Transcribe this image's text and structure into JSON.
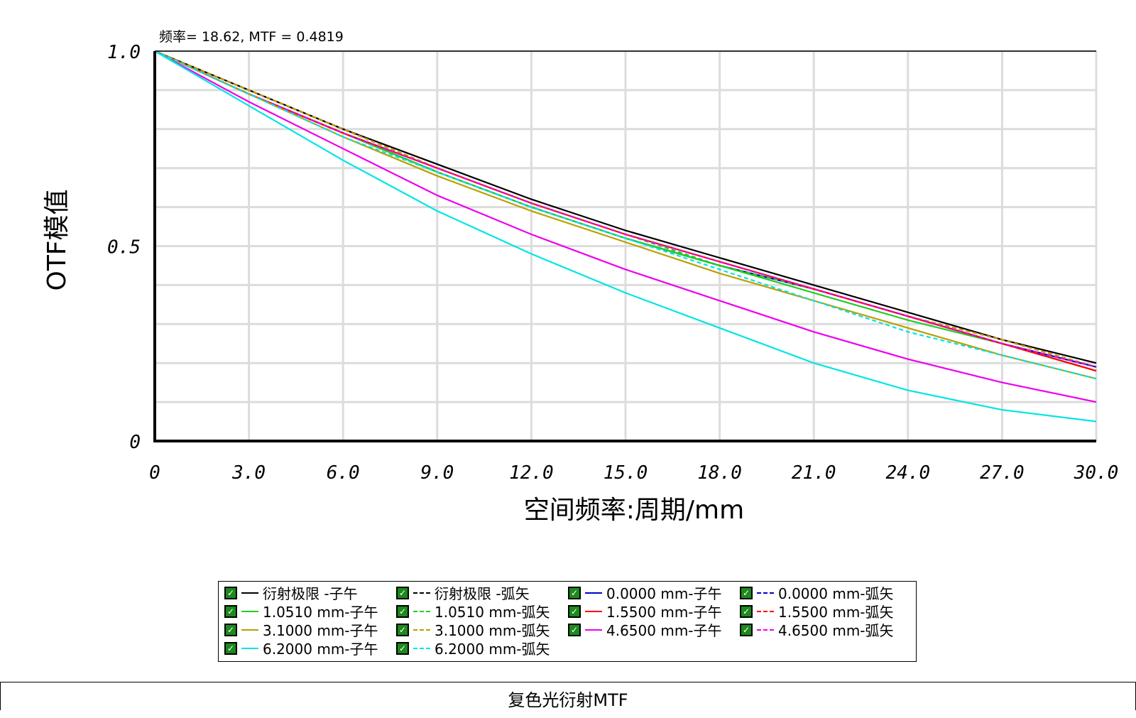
{
  "readout": "频率= 18.62, MTF = 0.4819",
  "footer_title": "复色光衍射MTF",
  "chart_data": {
    "type": "line",
    "title": "复色光衍射MTF",
    "xlabel": "空间频率:周期/mm",
    "ylabel": "OTF模值",
    "xlim": [
      0,
      30
    ],
    "ylim": [
      0,
      1
    ],
    "x_ticks": [
      "0",
      "3.0",
      "6.0",
      "9.0",
      "12.0",
      "15.0",
      "18.0",
      "21.0",
      "24.0",
      "27.0",
      "30.0"
    ],
    "y_ticks": [
      "0",
      "0.5",
      "1.0"
    ],
    "grid": true,
    "legend_position": "bottom",
    "x": [
      0,
      3,
      6,
      9,
      12,
      15,
      18,
      21,
      24,
      27,
      30
    ],
    "series": [
      {
        "name": "衍射极限 -子午",
        "color": "#000000",
        "dash": false,
        "values": [
          1.0,
          0.9,
          0.8,
          0.71,
          0.62,
          0.54,
          0.47,
          0.4,
          0.33,
          0.26,
          0.2
        ]
      },
      {
        "name": "衍射极限 -弧矢",
        "color": "#000000",
        "dash": true,
        "values": [
          1.0,
          0.9,
          0.8,
          0.7,
          0.61,
          0.53,
          0.46,
          0.39,
          0.32,
          0.25,
          0.19
        ]
      },
      {
        "name": "0.0000  mm-子午",
        "color": "#0000cc",
        "dash": false,
        "values": [
          1.0,
          0.89,
          0.79,
          0.69,
          0.6,
          0.52,
          0.45,
          0.39,
          0.32,
          0.25,
          0.19
        ]
      },
      {
        "name": "0.0000  mm-弧矢",
        "color": "#0000cc",
        "dash": true,
        "values": [
          1.0,
          0.89,
          0.79,
          0.69,
          0.6,
          0.52,
          0.45,
          0.39,
          0.32,
          0.25,
          0.19
        ]
      },
      {
        "name": "1.0510  mm-子午",
        "color": "#22cc22",
        "dash": false,
        "values": [
          1.0,
          0.89,
          0.79,
          0.69,
          0.6,
          0.52,
          0.45,
          0.38,
          0.31,
          0.25,
          0.18
        ]
      },
      {
        "name": "1.0510  mm-弧矢",
        "color": "#22cc22",
        "dash": true,
        "values": [
          1.0,
          0.89,
          0.79,
          0.7,
          0.61,
          0.53,
          0.45,
          0.39,
          0.32,
          0.25,
          0.19
        ]
      },
      {
        "name": "1.5500  mm-子午",
        "color": "#ff0000",
        "dash": false,
        "values": [
          1.0,
          0.89,
          0.79,
          0.7,
          0.61,
          0.53,
          0.46,
          0.39,
          0.32,
          0.25,
          0.18
        ]
      },
      {
        "name": "1.5500  mm-弧矢",
        "color": "#ff0000",
        "dash": true,
        "values": [
          1.0,
          0.9,
          0.8,
          0.7,
          0.61,
          0.53,
          0.46,
          0.39,
          0.32,
          0.26,
          0.19
        ]
      },
      {
        "name": "3.1000  mm-子午",
        "color": "#b8a000",
        "dash": false,
        "values": [
          1.0,
          0.89,
          0.78,
          0.68,
          0.59,
          0.51,
          0.43,
          0.36,
          0.29,
          0.22,
          0.16
        ]
      },
      {
        "name": "3.1000  mm-弧矢",
        "color": "#b8a000",
        "dash": true,
        "values": [
          1.0,
          0.9,
          0.8,
          0.7,
          0.61,
          0.53,
          0.46,
          0.39,
          0.32,
          0.26,
          0.19
        ]
      },
      {
        "name": "4.6500  mm-子午",
        "color": "#ee00ee",
        "dash": false,
        "values": [
          1.0,
          0.87,
          0.75,
          0.63,
          0.53,
          0.44,
          0.36,
          0.28,
          0.21,
          0.15,
          0.1
        ]
      },
      {
        "name": "4.6500  mm-弧矢",
        "color": "#ee00ee",
        "dash": true,
        "values": [
          1.0,
          0.89,
          0.79,
          0.7,
          0.61,
          0.53,
          0.46,
          0.39,
          0.32,
          0.25,
          0.19
        ]
      },
      {
        "name": "6.2000  mm-子午",
        "color": "#00e5e5",
        "dash": false,
        "values": [
          1.0,
          0.86,
          0.72,
          0.59,
          0.48,
          0.38,
          0.29,
          0.2,
          0.13,
          0.08,
          0.05
        ]
      },
      {
        "name": "6.2000  mm-弧矢",
        "color": "#00e5e5",
        "dash": true,
        "values": [
          1.0,
          0.89,
          0.78,
          0.69,
          0.6,
          0.52,
          0.44,
          0.36,
          0.28,
          0.22,
          0.16
        ]
      }
    ]
  }
}
